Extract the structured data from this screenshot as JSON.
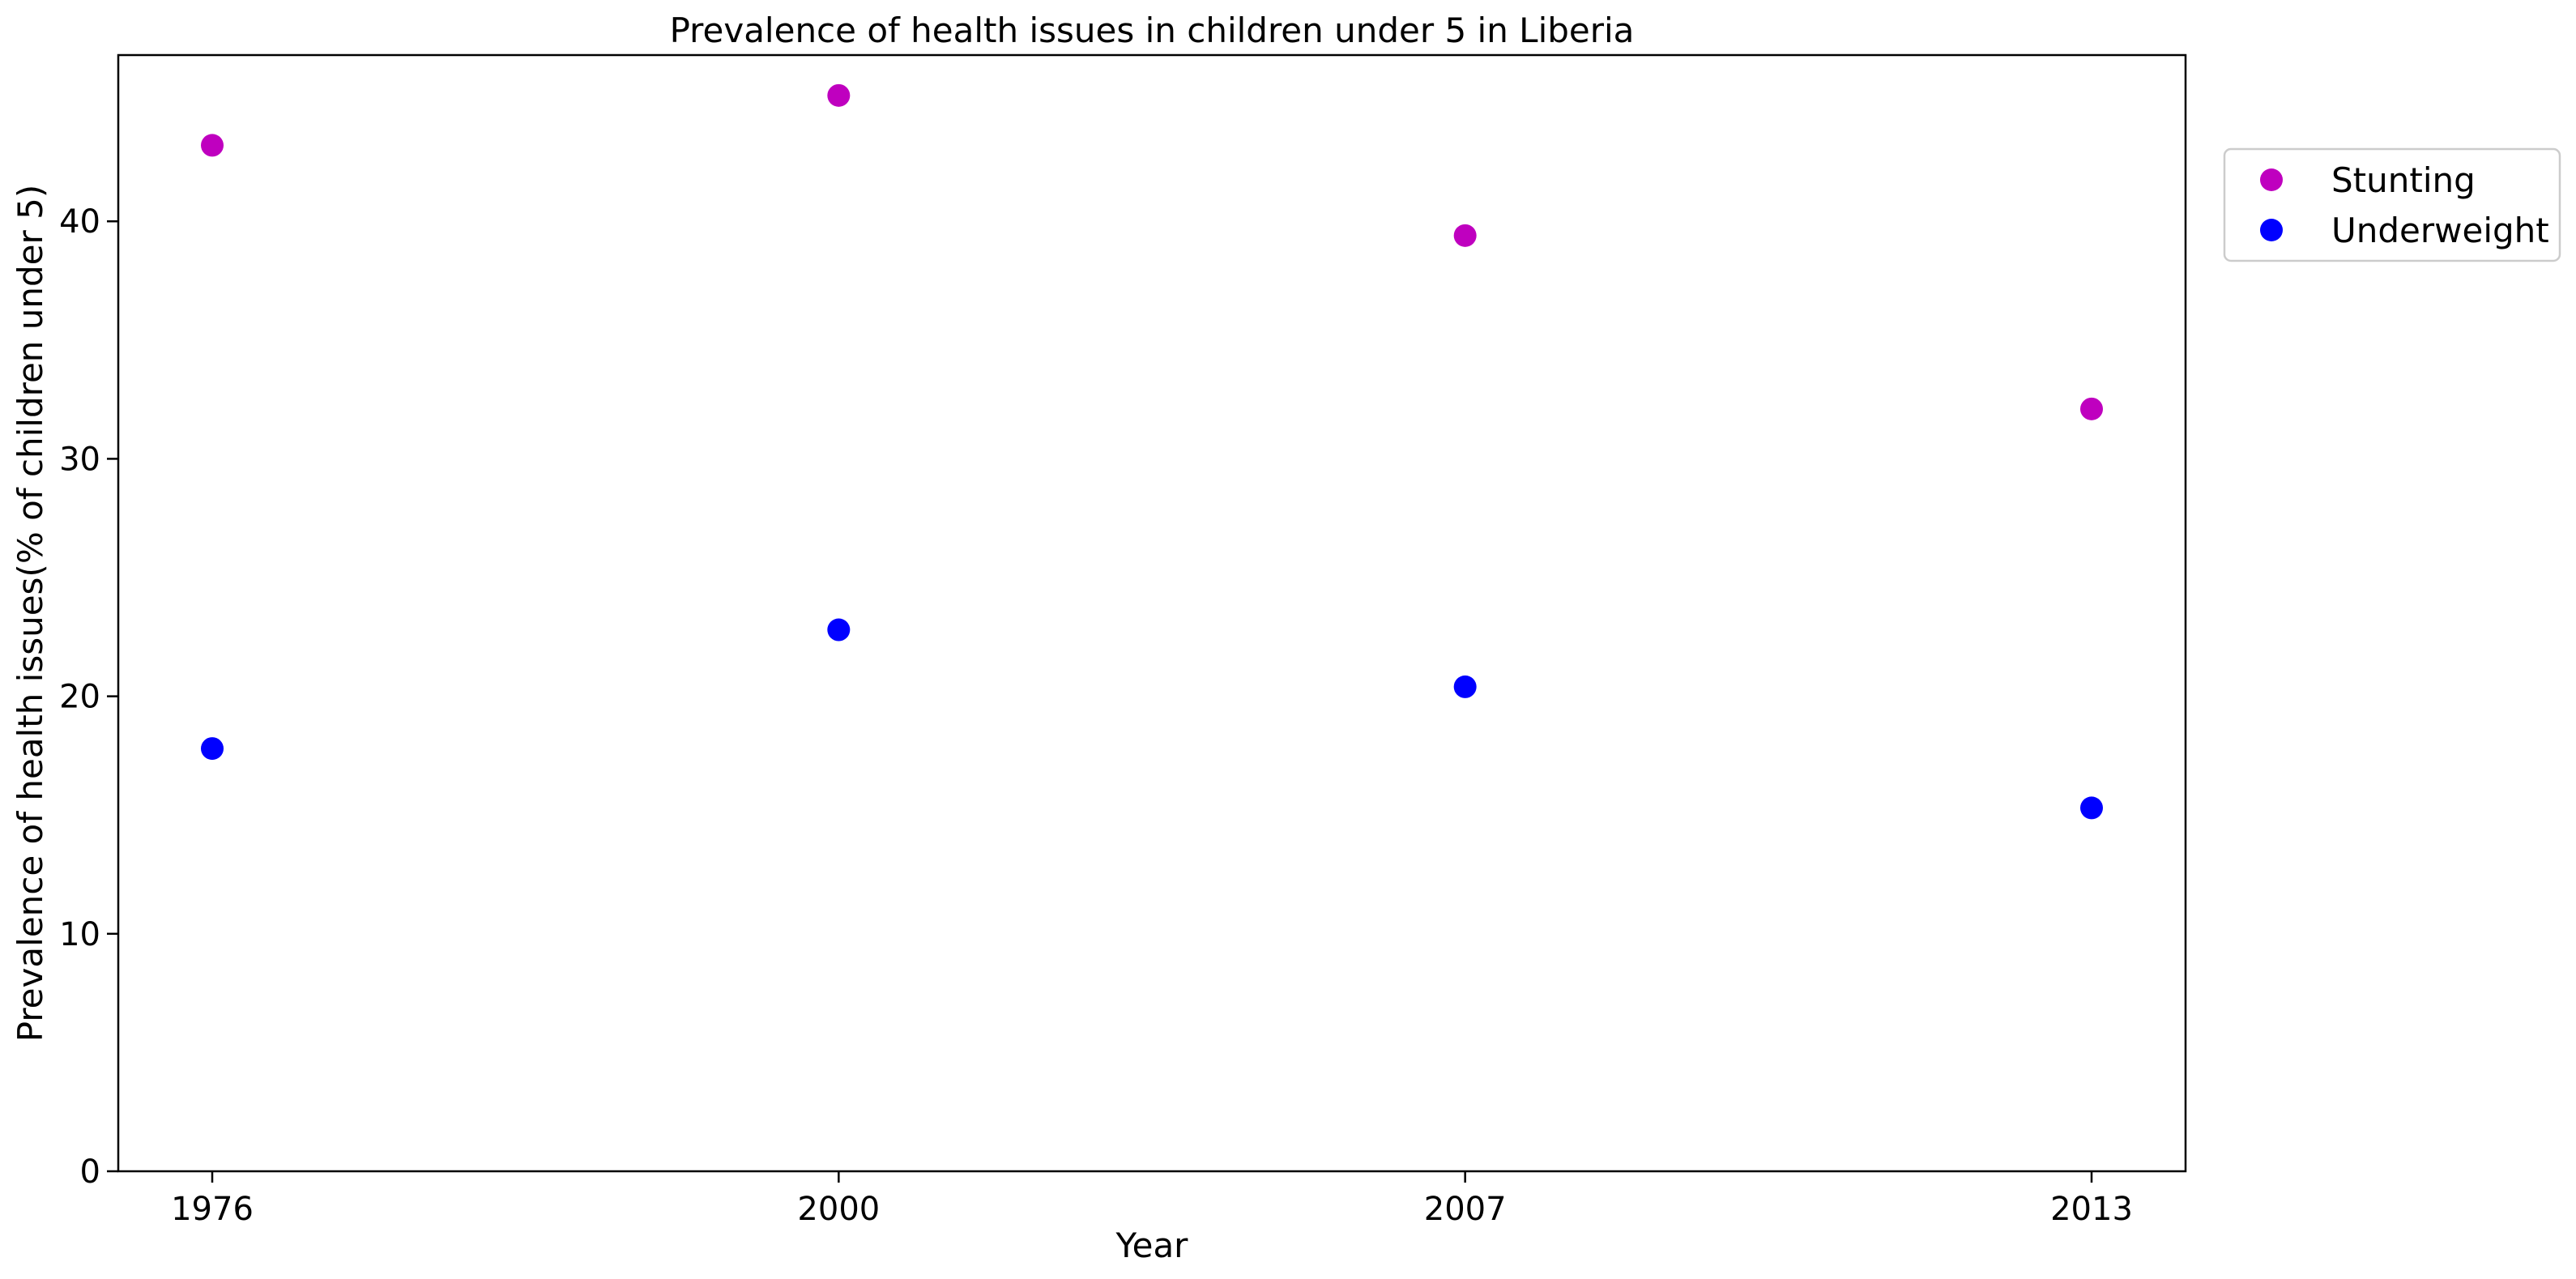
{
  "chart_data": {
    "type": "scatter",
    "title": "Prevalence of health issues in children under 5 in Liberia",
    "xlabel": "Year",
    "ylabel": "Prevalence of health issues(% of children under 5)",
    "categories": [
      "1976",
      "2000",
      "2007",
      "2013"
    ],
    "ylim": [
      0,
      47
    ],
    "yticks": [
      0,
      10,
      20,
      30,
      40
    ],
    "series": [
      {
        "name": "Stunting",
        "color": "#bf00bf",
        "values": [
          43.2,
          45.3,
          39.4,
          32.1
        ]
      },
      {
        "name": "Underweight",
        "color": "#0000ff",
        "values": [
          17.8,
          22.8,
          20.4,
          15.3
        ]
      }
    ],
    "legend_position": "outside-top-right",
    "grid": false
  }
}
